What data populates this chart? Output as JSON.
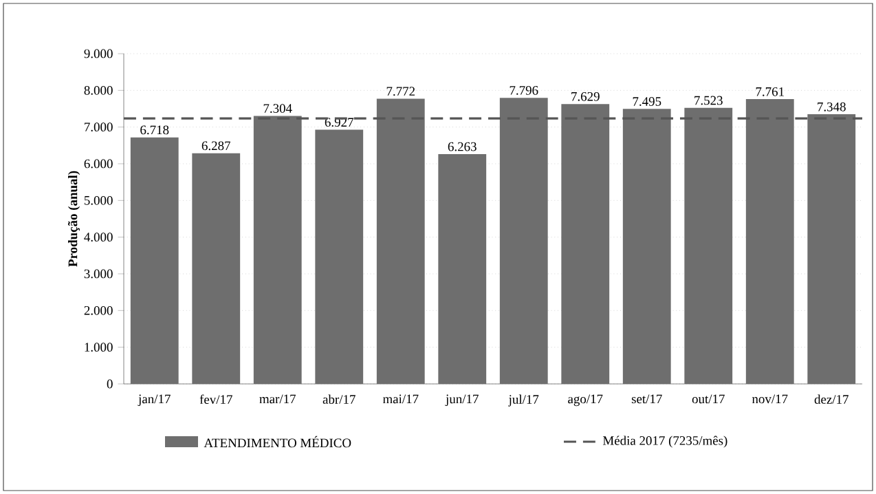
{
  "chart_data": {
    "type": "bar",
    "ylabel": "Produção (anual)",
    "categories": [
      "jan/17",
      "fev/17",
      "mar/17",
      "abr/17",
      "mai/17",
      "jun/17",
      "jul/17",
      "ago/17",
      "set/17",
      "out/17",
      "nov/17",
      "dez/17"
    ],
    "series": [
      {
        "name": "ATENDIMENTO MÉDICO",
        "color": "#6e6e6e",
        "values": [
          6718,
          6287,
          7304,
          6927,
          7772,
          6263,
          7796,
          7629,
          7495,
          7523,
          7761,
          7348
        ],
        "value_labels": [
          "6.718",
          "6.287",
          "7.304",
          "6.927",
          "7.772",
          "6.263",
          "7.796",
          "7.629",
          "7.495",
          "7.523",
          "7.761",
          "7.348"
        ]
      }
    ],
    "ylim": [
      0,
      9000
    ],
    "yticks": [
      0,
      {
        "value": 1000,
        "label": "1.000"
      },
      {
        "value": 2000,
        "label": "2.000"
      },
      {
        "value": 3000,
        "label": "3.000"
      },
      {
        "value": 4000,
        "label": "4.000"
      },
      {
        "value": 5000,
        "label": "5.000"
      },
      {
        "value": 6000,
        "label": "6.000"
      },
      {
        "value": 7000,
        "label": "7.000"
      },
      {
        "value": 8000,
        "label": "8.000"
      },
      {
        "value": 9000,
        "label": "9.000"
      }
    ],
    "ref_lines": [
      {
        "axis": "y",
        "value": 7235,
        "label": "Média 2017 (7235/mês)",
        "color": "#555555",
        "line_style": "dashed"
      }
    ],
    "grid": "y",
    "legend": "bottom"
  }
}
